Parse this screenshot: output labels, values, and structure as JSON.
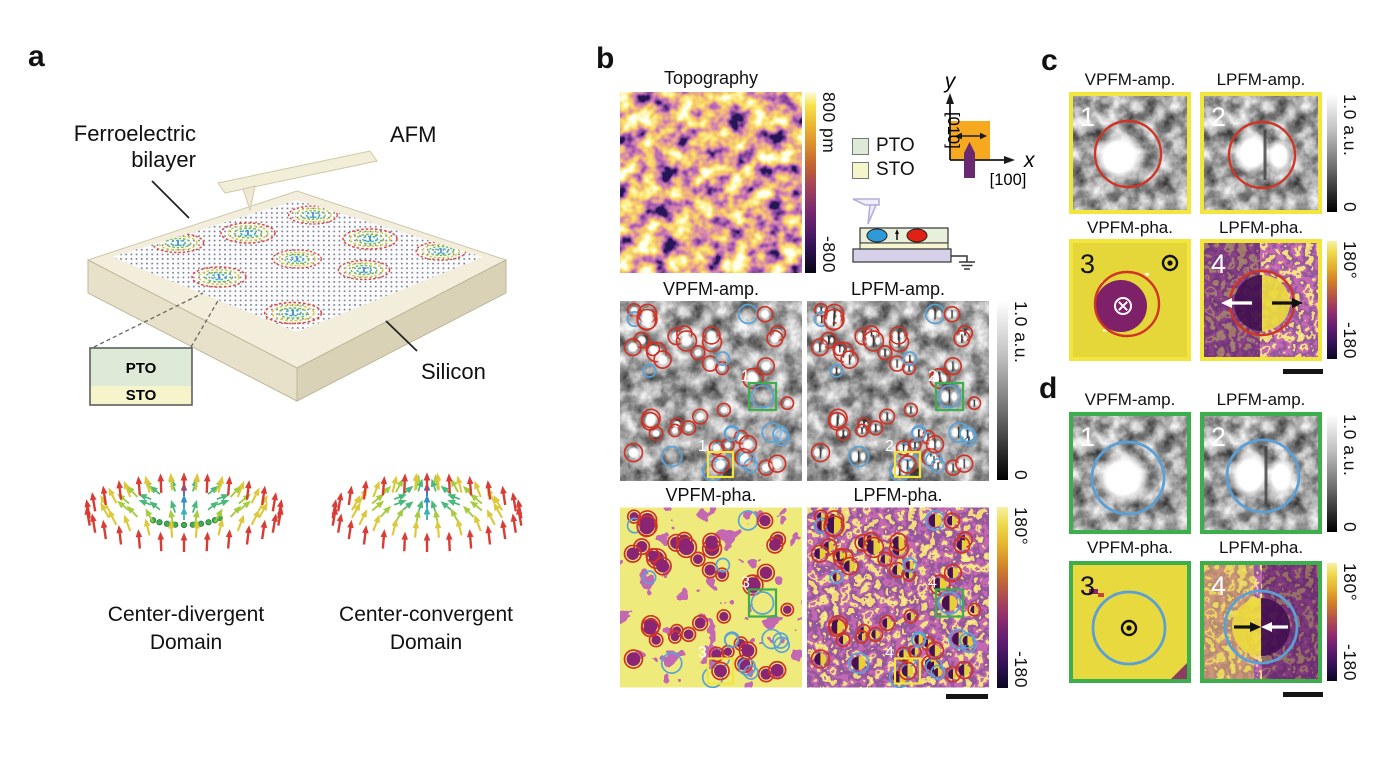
{
  "panel_a": {
    "label": "a",
    "bilayer_label_line1": "Ferroelectric",
    "bilayer_label_line2": "bilayer",
    "afm_label": "AFM",
    "silicon_label": "Silicon",
    "inset": {
      "top_layer": "PTO",
      "bottom_layer": "STO"
    },
    "domains": [
      {
        "caption_line1": "Center-divergent",
        "caption_line2": "Domain",
        "type": "divergent"
      },
      {
        "caption_line1": "Center-convergent",
        "caption_line2": "Domain",
        "type": "convergent"
      }
    ]
  },
  "panel_b": {
    "label": "b",
    "topography": {
      "title": "Topography",
      "colorbar_max": "800 pm",
      "colorbar_min": "-800"
    },
    "legend": [
      {
        "name": "PTO",
        "color": "#dcead7"
      },
      {
        "name": "STO",
        "color": "#f6f4cb"
      }
    ],
    "axes": {
      "y_label": "y",
      "y_direction": "[010]",
      "x_label": "x",
      "x_direction": "[100]"
    },
    "maps": [
      {
        "title": "VPFM-amp.",
        "box_number": "1"
      },
      {
        "title": "LPFM-amp.",
        "box_number": "2"
      },
      {
        "title": "VPFM-pha.",
        "box_number": "3"
      },
      {
        "title": "LPFM-pha.",
        "box_number": "4"
      }
    ],
    "amp_colorbar": {
      "max": "1.0 a.u.",
      "min": "0"
    },
    "pha_colorbar": {
      "max": "180°",
      "min": "-180"
    }
  },
  "panel_c": {
    "label": "c",
    "border_color": "#f2e63c",
    "ring_color": "#cf3526",
    "cells": [
      {
        "title": "VPFM-amp.",
        "number": "1"
      },
      {
        "title": "LPFM-amp.",
        "number": "2"
      },
      {
        "title": "VPFM-pha.",
        "number": "3"
      },
      {
        "title": "LPFM-pha.",
        "number": "4"
      }
    ],
    "amp_colorbar": {
      "max": "1.0 a.u.",
      "min": "0"
    },
    "pha_colorbar": {
      "max": "180°",
      "min": "-180"
    }
  },
  "panel_d": {
    "label": "d",
    "border_color": "#3cae4c",
    "ring_color": "#5aa0d6",
    "cells": [
      {
        "title": "VPFM-amp.",
        "number": "1"
      },
      {
        "title": "LPFM-amp.",
        "number": "2"
      },
      {
        "title": "VPFM-pha.",
        "number": "3"
      },
      {
        "title": "LPFM-pha.",
        "number": "4"
      }
    ],
    "amp_colorbar": {
      "max": "1.0 a.u.",
      "min": "0"
    },
    "pha_colorbar": {
      "max": "180°",
      "min": "-180"
    }
  }
}
